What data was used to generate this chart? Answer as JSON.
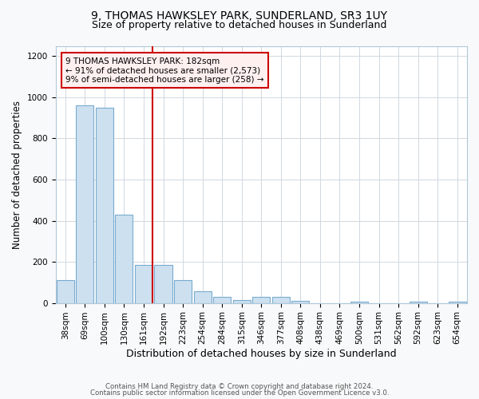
{
  "title": "9, THOMAS HAWKSLEY PARK, SUNDERLAND, SR3 1UY",
  "subtitle": "Size of property relative to detached houses in Sunderland",
  "xlabel": "Distribution of detached houses by size in Sunderland",
  "ylabel": "Number of detached properties",
  "categories": [
    "38sqm",
    "69sqm",
    "100sqm",
    "130sqm",
    "161sqm",
    "192sqm",
    "223sqm",
    "254sqm",
    "284sqm",
    "315sqm",
    "346sqm",
    "377sqm",
    "408sqm",
    "438sqm",
    "469sqm",
    "500sqm",
    "531sqm",
    "562sqm",
    "592sqm",
    "623sqm",
    "654sqm"
  ],
  "values": [
    110,
    960,
    950,
    430,
    185,
    185,
    110,
    55,
    30,
    15,
    30,
    30,
    10,
    0,
    0,
    5,
    0,
    0,
    5,
    0,
    5
  ],
  "bar_color": "#cce0f0",
  "bar_edge_color": "#7aabcf",
  "vline_color": "#cc0000",
  "annotation_line1": "9 THOMAS HAWKSLEY PARK: 182sqm",
  "annotation_line2": "← 91% of detached houses are smaller (2,573)",
  "annotation_line3": "9% of semi-detached houses are larger (258) →",
  "annotation_box_facecolor": "#fff0f0",
  "annotation_border_color": "#cc0000",
  "ylim": [
    0,
    1250
  ],
  "yticks": [
    0,
    200,
    400,
    600,
    800,
    1000,
    1200
  ],
  "footnote1": "Contains HM Land Registry data © Crown copyright and database right 2024.",
  "footnote2": "Contains public sector information licensed under the Open Government Licence v3.0.",
  "title_fontsize": 10,
  "subtitle_fontsize": 9,
  "xlabel_fontsize": 9,
  "ylabel_fontsize": 8.5,
  "tick_fontsize": 7.5,
  "background_color": "#f8f9fa",
  "plot_background": "#ffffff",
  "grid_color": "#d0d8e0"
}
